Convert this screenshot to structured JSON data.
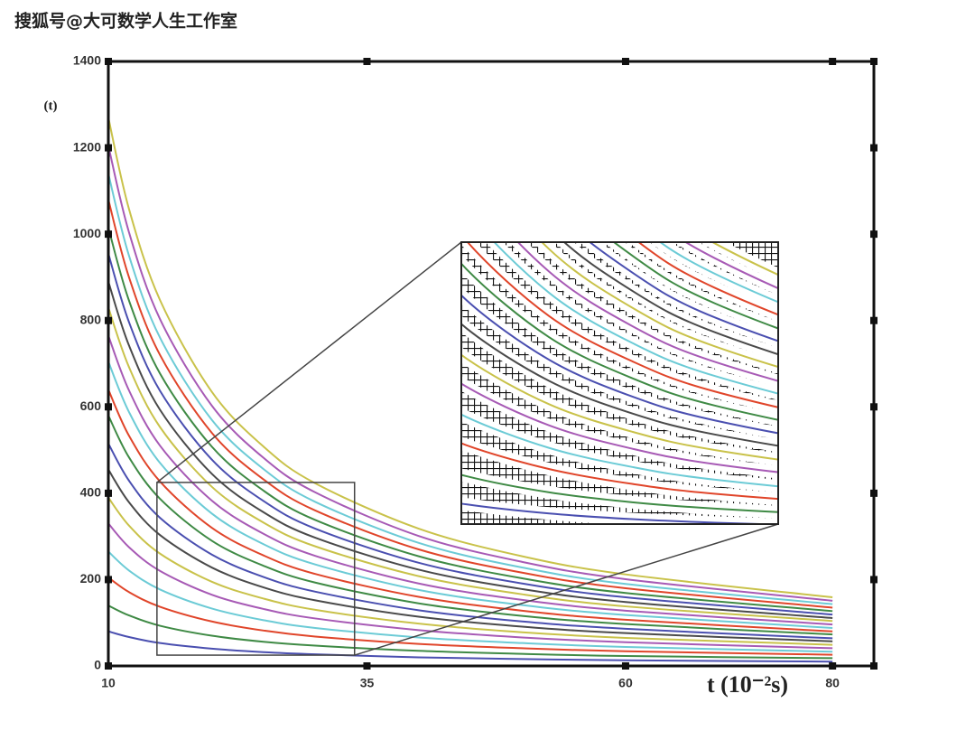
{
  "watermark": "搜狐号@大可数学人生工作室",
  "chart_data": {
    "type": "line",
    "y_label": "(t)",
    "x_label": "t (10⁻²s)",
    "x": [
      10,
      12,
      15,
      20,
      25,
      30,
      40,
      50,
      60,
      80
    ],
    "xlim": [
      10,
      84
    ],
    "xticks": [
      10,
      35,
      60,
      80
    ],
    "ylim": [
      0,
      1400
    ],
    "yticks": [
      0,
      200,
      400,
      600,
      800,
      1000,
      1200,
      1400
    ],
    "series": [
      {
        "color": "#4a4fb0",
        "values": [
          80,
          67,
          53,
          40,
          32,
          27,
          20,
          16,
          13,
          10
        ]
      },
      {
        "color": "#3f8a45",
        "values": [
          140,
          117,
          93,
          70,
          56,
          47,
          35,
          28,
          23,
          18
        ]
      },
      {
        "color": "#e0452a",
        "values": [
          205,
          171,
          137,
          103,
          82,
          68,
          51,
          41,
          34,
          26
        ]
      },
      {
        "color": "#6ccbd6",
        "values": [
          265,
          221,
          177,
          133,
          106,
          88,
          66,
          53,
          44,
          33
        ]
      },
      {
        "color": "#a75ab5",
        "values": [
          330,
          275,
          220,
          165,
          132,
          110,
          83,
          66,
          55,
          41
        ]
      },
      {
        "color": "#c9c24a",
        "values": [
          390,
          325,
          260,
          195,
          156,
          130,
          98,
          78,
          65,
          49
        ]
      },
      {
        "color": "#4a4a4a",
        "values": [
          455,
          379,
          303,
          228,
          182,
          152,
          114,
          91,
          76,
          57
        ]
      },
      {
        "color": "#4a4fb0",
        "values": [
          515,
          429,
          343,
          258,
          206,
          172,
          129,
          103,
          86,
          64
        ]
      },
      {
        "color": "#3f8a45",
        "values": [
          580,
          483,
          387,
          290,
          232,
          193,
          145,
          116,
          97,
          73
        ]
      },
      {
        "color": "#e0452a",
        "values": [
          640,
          533,
          427,
          320,
          256,
          213,
          160,
          128,
          107,
          80
        ]
      },
      {
        "color": "#6ccbd6",
        "values": [
          705,
          588,
          470,
          353,
          282,
          235,
          176,
          141,
          118,
          88
        ]
      },
      {
        "color": "#a75ab5",
        "values": [
          765,
          638,
          510,
          383,
          306,
          255,
          191,
          153,
          128,
          96
        ]
      },
      {
        "color": "#c9c24a",
        "values": [
          830,
          692,
          553,
          415,
          332,
          277,
          208,
          166,
          138,
          104
        ]
      },
      {
        "color": "#4a4a4a",
        "values": [
          890,
          742,
          593,
          445,
          356,
          297,
          223,
          178,
          148,
          111
        ]
      },
      {
        "color": "#4a4fb0",
        "values": [
          955,
          796,
          637,
          478,
          382,
          318,
          239,
          191,
          159,
          119
        ]
      },
      {
        "color": "#3f8a45",
        "values": [
          1015,
          846,
          677,
          508,
          406,
          338,
          254,
          203,
          169,
          127
        ]
      },
      {
        "color": "#e0452a",
        "values": [
          1080,
          900,
          720,
          540,
          432,
          360,
          270,
          216,
          180,
          135
        ]
      },
      {
        "color": "#6ccbd6",
        "values": [
          1140,
          950,
          760,
          570,
          456,
          380,
          285,
          228,
          190,
          143
        ]
      },
      {
        "color": "#a75ab5",
        "values": [
          1205,
          1004,
          803,
          603,
          482,
          402,
          301,
          241,
          201,
          151
        ]
      },
      {
        "color": "#c9c24a",
        "values": [
          1270,
          1058,
          847,
          635,
          508,
          423,
          318,
          254,
          212,
          159
        ]
      }
    ]
  }
}
